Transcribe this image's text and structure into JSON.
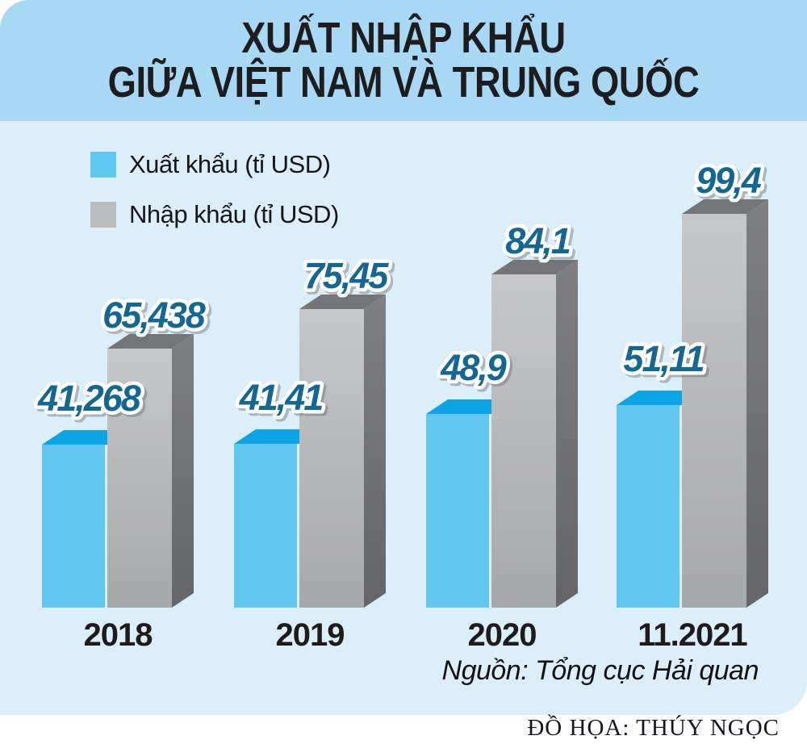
{
  "title": {
    "line1": "XUẤT NHẬP KHẨU",
    "line2": "GIỮA VIỆT NAM VÀ TRUNG QUỐC"
  },
  "legend": [
    {
      "label": "Xuất khẩu (tỉ USD)",
      "color": "#5fc7f1"
    },
    {
      "label": "Nhập khẩu (tỉ USD)",
      "color": "#bcbdbf"
    }
  ],
  "chart_data": {
    "type": "bar",
    "style": "3d-column",
    "title": "XUẤT NHẬP KHẨU GIỮA VIỆT NAM VÀ TRUNG QUỐC",
    "categories": [
      "2018",
      "2019",
      "2020",
      "11.2021"
    ],
    "series": [
      {
        "name": "Xuất khẩu (tỉ USD)",
        "values": [
          41.268,
          41.41,
          48.9,
          51.11
        ],
        "labels": [
          "41,268",
          "41,41",
          "48,9",
          "51,11"
        ],
        "color": "#5fc7f1"
      },
      {
        "name": "Nhập khẩu (tỉ USD)",
        "values": [
          65.438,
          75.45,
          84.1,
          99.4
        ],
        "labels": [
          "65,438",
          "75,45",
          "84,1",
          "99,4"
        ],
        "color": "#b9babc"
      }
    ],
    "unit": "tỉ USD",
    "ylim": [
      0,
      105
    ],
    "grid": false,
    "axes_shown": false,
    "legend_position": "top-left"
  },
  "source": "Nguồn: Tổng cục Hải quan",
  "credit": "ĐỒ HỌA: THÚY NGỌC",
  "colors": {
    "title_band": "#a9d8f4",
    "body": "#dceef9",
    "blue_front": "#61c7f1",
    "blue_top": "#0ca4e4",
    "gray_front_light": "#c6c7c9",
    "gray_front_dark": "#a7a8aa",
    "gray_top": "#747579",
    "gray_side_light": "#7e7f83",
    "gray_side_dark": "#646569",
    "value_label_fill": "#15678f",
    "value_label_outline": "#ffffff",
    "category_label": "#1c1c1e"
  }
}
